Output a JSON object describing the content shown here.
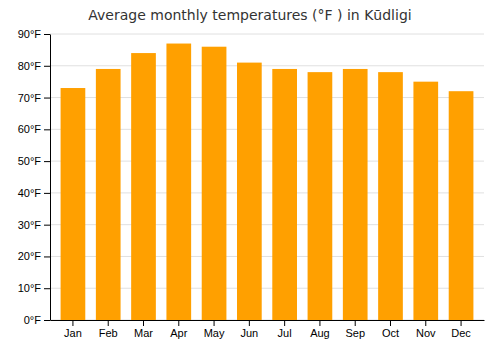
{
  "chart_data": {
    "type": "bar",
    "title": "Average monthly temperatures (°F ) in Kūdligi",
    "categories": [
      "Jan",
      "Feb",
      "Mar",
      "Apr",
      "May",
      "Jun",
      "Jul",
      "Aug",
      "Sep",
      "Oct",
      "Nov",
      "Dec"
    ],
    "values": [
      73,
      79,
      84,
      87,
      86,
      81,
      79,
      78,
      79,
      78,
      75,
      72
    ],
    "color": "#FFA000",
    "ylim": [
      0,
      90
    ],
    "yticks": [
      {
        "value": 0,
        "label": "0°F"
      },
      {
        "value": 10,
        "label": "10°F"
      },
      {
        "value": 20,
        "label": "20°F"
      },
      {
        "value": 30,
        "label": "30°F"
      },
      {
        "value": 40,
        "label": "40°F"
      },
      {
        "value": 50,
        "label": "50°F"
      },
      {
        "value": 60,
        "label": "60°F"
      },
      {
        "value": 70,
        "label": "70°F"
      },
      {
        "value": 80,
        "label": "80°F"
      },
      {
        "value": 90,
        "label": "90°F"
      }
    ],
    "grid": true
  }
}
